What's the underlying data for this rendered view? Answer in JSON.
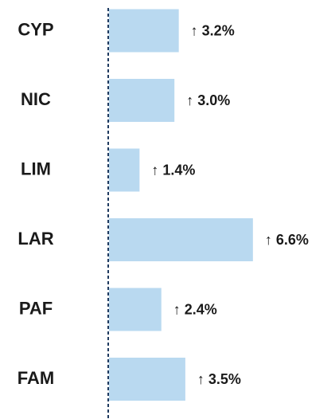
{
  "chart_data": {
    "type": "bar",
    "orientation": "horizontal",
    "categories": [
      "CYP",
      "NIC",
      "LIM",
      "LAR",
      "PAF",
      "FAM"
    ],
    "values": [
      3.2,
      3.0,
      1.4,
      6.6,
      2.4,
      3.5
    ],
    "value_labels": [
      "↑ 3.2%",
      "↑ 3.0%",
      "↑ 1.4%",
      "↑ 6.6%",
      "↑ 2.4%",
      "↑ 3.5%"
    ],
    "color": "#b9d9f0"
  }
}
